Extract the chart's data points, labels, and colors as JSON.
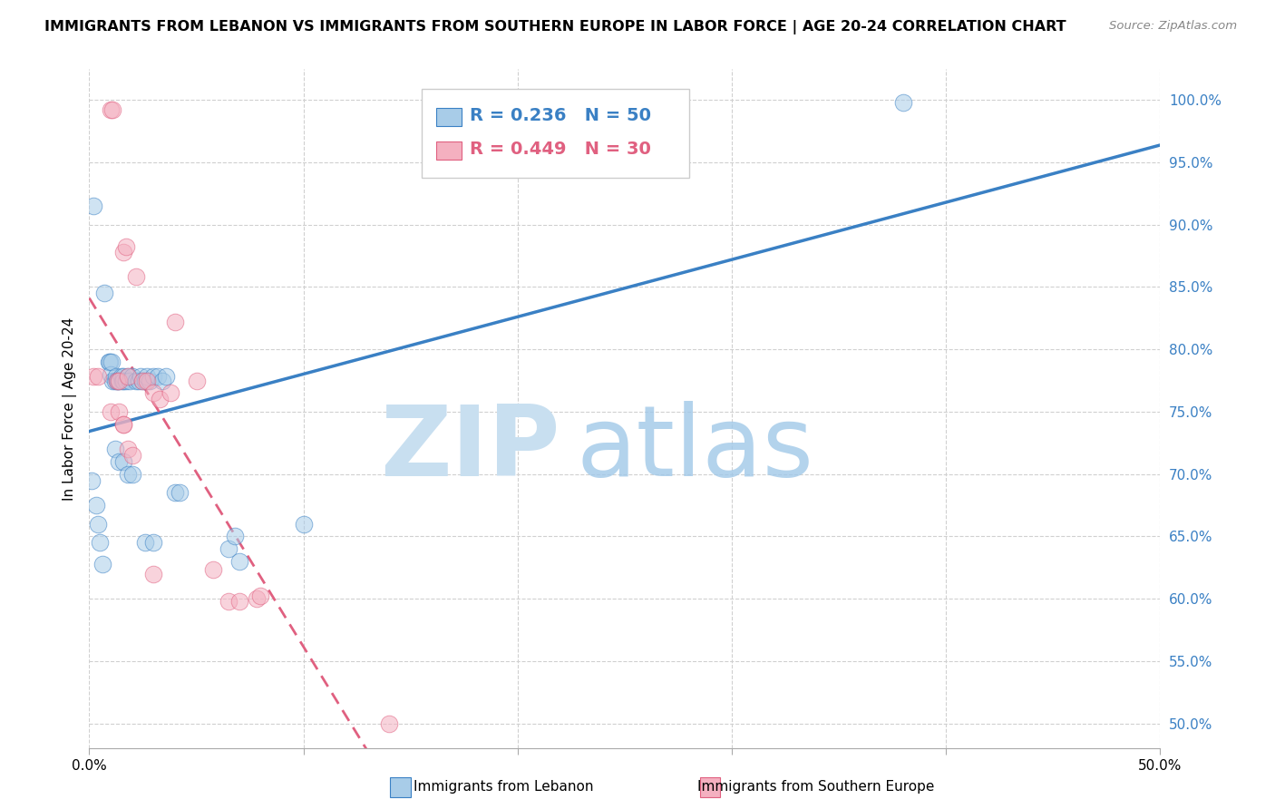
{
  "title": "IMMIGRANTS FROM LEBANON VS IMMIGRANTS FROM SOUTHERN EUROPE IN LABOR FORCE | AGE 20-24 CORRELATION CHART",
  "source": "Source: ZipAtlas.com",
  "ylabel": "In Labor Force | Age 20-24",
  "legend_label1": "Immigrants from Lebanon",
  "legend_label2": "Immigrants from Southern Europe",
  "R1": 0.236,
  "N1": 50,
  "R2": 0.449,
  "N2": 30,
  "color1": "#a8cce8",
  "color2": "#f4b0c0",
  "line_color1": "#3a80c4",
  "line_color2": "#e06080",
  "xlim": [
    0.0,
    0.5
  ],
  "ylim": [
    0.48,
    1.025
  ],
  "blue_x": [
    0.002,
    0.007,
    0.009,
    0.0095,
    0.01,
    0.0105,
    0.011,
    0.012,
    0.0125,
    0.013,
    0.0135,
    0.014,
    0.015,
    0.0155,
    0.016,
    0.016,
    0.017,
    0.018,
    0.019,
    0.02,
    0.022,
    0.023,
    0.024,
    0.025,
    0.026,
    0.027,
    0.028,
    0.03,
    0.032,
    0.034,
    0.036,
    0.04,
    0.042,
    0.065,
    0.068,
    0.07,
    0.001,
    0.003,
    0.004,
    0.005,
    0.006,
    0.38,
    0.1,
    0.012,
    0.014,
    0.016,
    0.018,
    0.02,
    0.026,
    0.03
  ],
  "blue_y": [
    0.915,
    0.845,
    0.79,
    0.79,
    0.78,
    0.79,
    0.775,
    0.775,
    0.778,
    0.775,
    0.775,
    0.775,
    0.778,
    0.775,
    0.778,
    0.775,
    0.775,
    0.778,
    0.775,
    0.778,
    0.775,
    0.775,
    0.778,
    0.775,
    0.775,
    0.778,
    0.775,
    0.778,
    0.778,
    0.775,
    0.778,
    0.685,
    0.685,
    0.64,
    0.65,
    0.63,
    0.695,
    0.675,
    0.66,
    0.645,
    0.628,
    0.998,
    0.66,
    0.72,
    0.71,
    0.71,
    0.7,
    0.7,
    0.645,
    0.645
  ],
  "pink_x": [
    0.002,
    0.004,
    0.01,
    0.011,
    0.013,
    0.014,
    0.016,
    0.017,
    0.018,
    0.022,
    0.025,
    0.027,
    0.03,
    0.033,
    0.038,
    0.04,
    0.05,
    0.058,
    0.065,
    0.07,
    0.078,
    0.08,
    0.01,
    0.014,
    0.016,
    0.016,
    0.018,
    0.02,
    0.03,
    0.14
  ],
  "pink_y": [
    0.778,
    0.778,
    0.992,
    0.992,
    0.775,
    0.775,
    0.878,
    0.882,
    0.778,
    0.858,
    0.775,
    0.775,
    0.765,
    0.76,
    0.765,
    0.822,
    0.775,
    0.623,
    0.598,
    0.598,
    0.6,
    0.602,
    0.75,
    0.75,
    0.74,
    0.74,
    0.72,
    0.715,
    0.62,
    0.5
  ],
  "watermark_zip_color": "#c8dff0",
  "watermark_atlas_color": "#a0c8e8",
  "background_color": "#ffffff"
}
